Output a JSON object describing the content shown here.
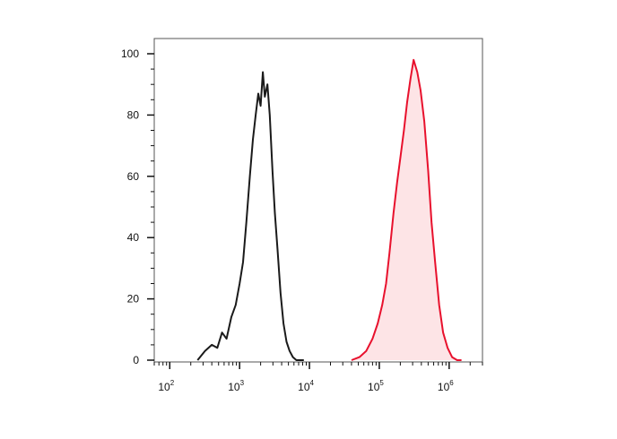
{
  "chart_data": {
    "type": "area",
    "x_scale": "log",
    "xlim": [
      60,
      3000000
    ],
    "ylim": [
      0,
      100
    ],
    "grid": false,
    "legend": "none",
    "y_ticks": [
      {
        "value": 0,
        "label": "0"
      },
      {
        "value": 20,
        "label": "20"
      },
      {
        "value": 40,
        "label": "40"
      },
      {
        "value": 60,
        "label": "60"
      },
      {
        "value": 80,
        "label": "80"
      },
      {
        "value": 100,
        "label": "100"
      }
    ],
    "x_ticks": [
      {
        "value": 100,
        "base": "10",
        "exp": "2"
      },
      {
        "value": 1000,
        "base": "10",
        "exp": "3"
      },
      {
        "value": 10000,
        "base": "10",
        "exp": "4"
      },
      {
        "value": 100000,
        "base": "10",
        "exp": "5"
      },
      {
        "value": 1000000,
        "base": "10",
        "exp": "6"
      }
    ],
    "series": [
      {
        "color": "#1a1a1a",
        "fill": "none",
        "x": [
          250,
          320,
          400,
          480,
          560,
          650,
          760,
          880,
          1000,
          1120,
          1250,
          1400,
          1550,
          1700,
          1850,
          2000,
          2150,
          2300,
          2500,
          2700,
          2950,
          3200,
          3500,
          3850,
          4250,
          4700,
          5200,
          5800,
          6500,
          7300,
          8300
        ],
        "y": [
          0,
          3,
          5,
          4,
          9,
          7,
          14,
          18,
          25,
          32,
          45,
          60,
          72,
          80,
          87,
          83,
          94,
          86,
          90,
          80,
          62,
          48,
          36,
          22,
          12,
          6,
          3,
          1,
          0,
          0,
          0
        ]
      },
      {
        "color": "#e8112d",
        "fill": "#fde4e6",
        "x": [
          40000,
          52000,
          65000,
          80000,
          95000,
          110000,
          125000,
          140000,
          160000,
          180000,
          200000,
          225000,
          250000,
          280000,
          310000,
          350000,
          390000,
          440000,
          500000,
          560000,
          630000,
          720000,
          820000,
          950000,
          1100000,
          1300000,
          1500000
        ],
        "y": [
          0,
          1,
          3,
          7,
          12,
          18,
          25,
          35,
          48,
          58,
          66,
          75,
          84,
          92,
          98,
          94,
          88,
          78,
          62,
          45,
          32,
          18,
          9,
          4,
          1,
          0,
          0
        ]
      }
    ]
  }
}
